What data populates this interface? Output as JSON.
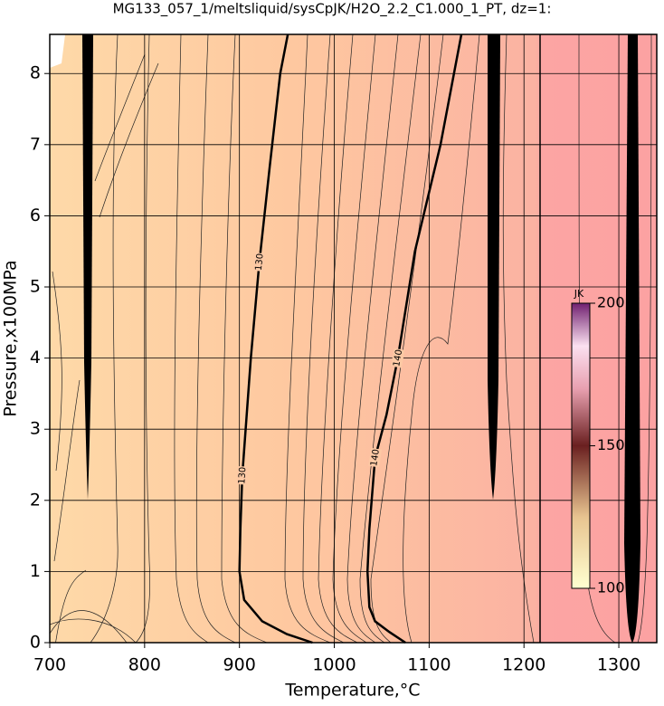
{
  "chart_data": {
    "type": "contour",
    "title": "MG133_057_1/meltsliquid/sysCpJK/H2O_2.2_C1.000_1_PT, dz=1:",
    "x_label": "Temperature,°C",
    "y_label": "Pressure,x100MPa",
    "xlim": [
      700,
      1340
    ],
    "ylim": [
      0,
      8.55
    ],
    "xticks": [
      700,
      800,
      900,
      1000,
      1100,
      1200,
      1300
    ],
    "yticks": [
      0,
      1,
      2,
      3,
      4,
      5,
      6,
      7,
      8
    ],
    "grid": true,
    "contours": [
      {
        "level": 130,
        "color": "#000000",
        "x": [
          951,
          943,
          932,
          921,
          912,
          903,
          901,
          900,
          905,
          924,
          950,
          977
        ],
        "y": [
          8.55,
          8,
          6.7,
          5.35,
          4,
          2.35,
          1.6,
          1,
          0.6,
          0.3,
          0.12,
          0
        ]
      },
      {
        "level": 140,
        "color": "#000000",
        "x": [
          1134,
          1112,
          1085,
          1067,
          1055,
          1043,
          1037,
          1035,
          1037,
          1043,
          1058,
          1075
        ],
        "y": [
          8.55,
          7,
          5.5,
          4,
          3.2,
          2.6,
          1.6,
          1,
          0.5,
          0.3,
          0.15,
          0
        ]
      }
    ],
    "colorbar": {
      "label": "JK",
      "lim": [
        100,
        200
      ],
      "ticks": [
        100,
        150,
        200
      ]
    }
  }
}
